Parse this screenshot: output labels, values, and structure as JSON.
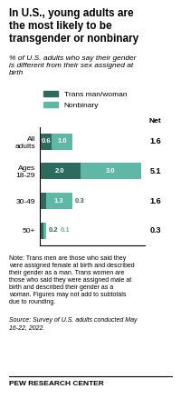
{
  "chart_data": {
    "type": "bar",
    "orientation": "horizontal",
    "stacked": true,
    "title": "In U.S., young adults are\nthe most likely to be\ntransgender or nonbinary",
    "subtitle": "% of U.S. adults who say their gender\nis different from their sex assigned at\nbirth",
    "categories": [
      "All\nadults",
      "Ages\n18-29",
      "30-49",
      "50+"
    ],
    "series": [
      {
        "name": "Trans man/woman",
        "color": "#2d6b5e",
        "values": [
          0.6,
          2.0,
          0.3,
          0.2
        ]
      },
      {
        "name": "Nonbinary",
        "color": "#5fb8a5",
        "values": [
          1.0,
          3.0,
          1.3,
          0.1
        ]
      }
    ],
    "net_label": "Net",
    "net_values": [
      1.6,
      5.1,
      1.6,
      0.3
    ],
    "xlim": [
      0,
      5.2
    ],
    "tick_labels": "y",
    "data_labels": true,
    "legend": "upper left",
    "note": "Note: Trans men are those who said they\nwere assigned female at birth and described\ntheir gender as a man. Trans women are\nthose who said they were assigned male at\nbirth and described their gender as a\nwoman. Figures may not add to subtotals\ndue to rounding.",
    "source": "Source: Survey of U.S. adults conducted May\n16-22, 2022.",
    "footer": "PEW RESEARCH CENTER"
  }
}
